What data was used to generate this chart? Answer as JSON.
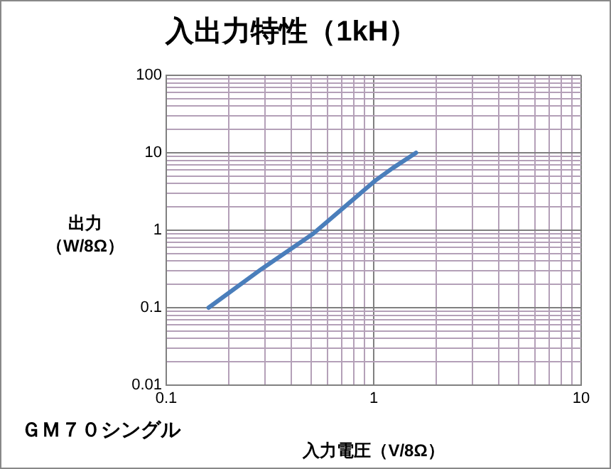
{
  "chart_data": {
    "type": "line",
    "title": "入出力特性（1kH）",
    "xlabel": "入力電圧（V/8Ω）",
    "ylabel": "出力（W/8Ω）",
    "annotations": [
      "ＧＭ７０シングル"
    ],
    "x": [
      0.16,
      0.29,
      0.51,
      1.02,
      1.23,
      1.6
    ],
    "series": [
      {
        "color": "#4a7ebb",
        "values": [
          0.1,
          0.32,
          0.9,
          4.4,
          6.3,
          10
        ]
      }
    ],
    "log": "xy",
    "grid": true,
    "legend": false,
    "marker": "none",
    "line_style": "solid",
    "xlim": [
      0.1,
      10
    ],
    "ylim": [
      0.01,
      100
    ],
    "xticks": [
      0.1,
      {
        "value": 0.2,
        "label": null
      },
      {
        "value": 0.3,
        "label": null
      },
      {
        "value": 0.4,
        "label": null
      },
      {
        "value": 0.5,
        "label": null
      },
      {
        "value": 0.6,
        "label": null
      },
      {
        "value": 0.7,
        "label": null
      },
      {
        "value": 0.8,
        "label": null
      },
      {
        "value": 0.9,
        "label": null
      },
      1,
      {
        "value": 2,
        "label": null
      },
      {
        "value": 3,
        "label": null
      },
      {
        "value": 4,
        "label": null
      },
      {
        "value": 5,
        "label": null
      },
      {
        "value": 6,
        "label": null
      },
      {
        "value": 7,
        "label": null
      },
      {
        "value": 8,
        "label": null
      },
      {
        "value": 9,
        "label": null
      },
      10
    ],
    "yticks": [
      0.01,
      {
        "value": 0.02,
        "label": null
      },
      {
        "value": 0.03,
        "label": null
      },
      {
        "value": 0.04,
        "label": null
      },
      {
        "value": 0.05,
        "label": null
      },
      {
        "value": 0.06,
        "label": null
      },
      {
        "value": 0.07,
        "label": null
      },
      {
        "value": 0.08,
        "label": null
      },
      {
        "value": 0.09,
        "label": null
      },
      0.1,
      {
        "value": 0.2,
        "label": null
      },
      {
        "value": 0.3,
        "label": null
      },
      {
        "value": 0.4,
        "label": null
      },
      {
        "value": 0.5,
        "label": null
      },
      {
        "value": 0.6,
        "label": null
      },
      {
        "value": 0.7,
        "label": null
      },
      {
        "value": 0.8,
        "label": null
      },
      {
        "value": 0.9,
        "label": null
      },
      1,
      {
        "value": 2,
        "label": null
      },
      {
        "value": 3,
        "label": null
      },
      {
        "value": 4,
        "label": null
      },
      {
        "value": 5,
        "label": null
      },
      {
        "value": 6,
        "label": null
      },
      {
        "value": 7,
        "label": null
      },
      {
        "value": 8,
        "label": null
      },
      {
        "value": 9,
        "label": null
      },
      10,
      {
        "value": 20,
        "label": null
      },
      {
        "value": 30,
        "label": null
      },
      {
        "value": 40,
        "label": null
      },
      {
        "value": 50,
        "label": null
      },
      {
        "value": 60,
        "label": null
      },
      {
        "value": 70,
        "label": null
      },
      {
        "value": 80,
        "label": null
      },
      {
        "value": 90,
        "label": null
      },
      100
    ]
  }
}
